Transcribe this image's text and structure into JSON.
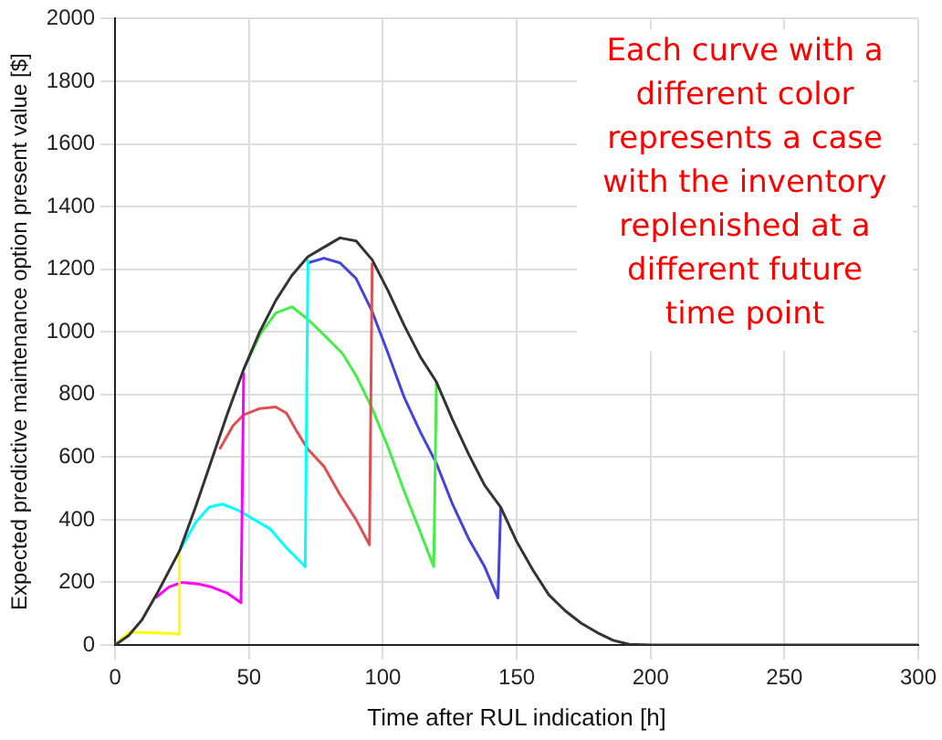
{
  "chart_data": {
    "type": "line",
    "xlabel": "Time after RUL indication [h]",
    "ylabel": "Expected predictive maintenance option present value [$]",
    "annotations": [
      "Each curve with a different color represents a case with the inventory replenished at a different future time point"
    ],
    "xlim": [
      0,
      300
    ],
    "xticks": [
      0,
      50,
      100,
      150,
      200,
      250,
      300
    ],
    "ylim": [
      0,
      2000
    ],
    "yticks": [
      0,
      200,
      400,
      600,
      800,
      1000,
      1200,
      1400,
      1600,
      1800,
      2000
    ],
    "grid": true,
    "legend": false,
    "marker": "none",
    "line_style": "solid",
    "series": [
      {
        "color": "#333333",
        "x": [
          0,
          5,
          10,
          16,
          24,
          30,
          36,
          42,
          48,
          54,
          60,
          66,
          72,
          78,
          84,
          90,
          96,
          102,
          108,
          114,
          120,
          126,
          132,
          138,
          144,
          150,
          156,
          162,
          168,
          174,
          180,
          186,
          192,
          200,
          250,
          300
        ],
        "values": [
          0,
          30,
          80,
          170,
          300,
          440,
          590,
          740,
          880,
          1000,
          1100,
          1180,
          1240,
          1270,
          1300,
          1290,
          1230,
          1130,
          1020,
          920,
          840,
          720,
          610,
          510,
          440,
          330,
          240,
          160,
          110,
          70,
          40,
          15,
          2,
          0,
          0,
          0
        ]
      },
      {
        "color": "#ffff00",
        "x": [
          0,
          5,
          10,
          18,
          24,
          24
        ],
        "values": [
          0,
          40,
          40,
          38,
          35,
          300
        ]
      },
      {
        "color": "#ff00ff",
        "x": [
          15,
          20,
          25,
          31,
          36,
          42,
          47,
          48
        ],
        "values": [
          150,
          185,
          200,
          195,
          185,
          165,
          135,
          870
        ]
      },
      {
        "color": "#00ffff",
        "x": [
          24,
          30,
          35,
          40,
          46,
          52,
          58,
          64,
          71,
          72
        ],
        "values": [
          300,
          390,
          440,
          450,
          430,
          400,
          370,
          310,
          250,
          1230
        ]
      },
      {
        "color": "#e05050",
        "x": [
          39,
          44,
          48,
          54,
          60,
          64,
          68,
          72,
          78,
          84,
          90,
          95,
          96
        ],
        "values": [
          625,
          700,
          735,
          755,
          760,
          740,
          680,
          625,
          570,
          480,
          400,
          320,
          1220
        ]
      },
      {
        "color": "#44ee44",
        "x": [
          48,
          54,
          60,
          66,
          72,
          78,
          85,
          90,
          96,
          102,
          108,
          114,
          119,
          120
        ],
        "values": [
          880,
          990,
          1060,
          1080,
          1040,
          990,
          930,
          860,
          755,
          630,
          490,
          360,
          250,
          840
        ]
      },
      {
        "color": "#4444dd",
        "x": [
          72,
          78,
          84,
          90,
          96,
          102,
          108,
          114,
          120,
          126,
          132,
          138,
          143,
          144
        ],
        "values": [
          1220,
          1235,
          1220,
          1170,
          1065,
          930,
          790,
          680,
          580,
          450,
          340,
          250,
          150,
          440
        ]
      }
    ]
  }
}
